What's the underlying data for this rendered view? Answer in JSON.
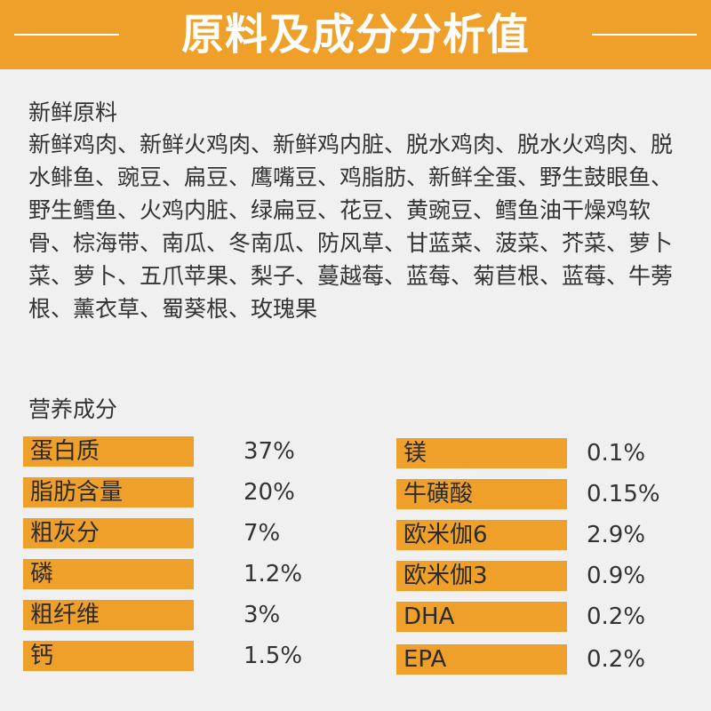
{
  "header": {
    "title": "原料及成分分析值"
  },
  "ingredients": {
    "label": "新鲜原料",
    "text": "新鲜鸡肉、新鲜火鸡肉、新鲜鸡内脏、脱水鸡肉、脱水火鸡肉、脱水鲱鱼、豌豆、扁豆、鹰嘴豆、鸡脂肪、新鲜全蛋、野生鼓眼鱼、野生鳕鱼、火鸡内脏、绿扁豆、花豆、黄豌豆、鳕鱼油干燥鸡软骨、棕海带、南瓜、冬南瓜、防风草、甘蓝菜、菠菜、芥菜、萝卜菜、萝卜、五爪苹果、梨子、蔓越莓、蓝莓、菊苣根、蓝莓、牛蒡根、薰衣草、蜀葵根、玫瑰果"
  },
  "nutrition": {
    "label": "营养成分",
    "left": [
      {
        "name": "蛋白质",
        "value": "37%"
      },
      {
        "name": "脂肪含量",
        "value": "20%"
      },
      {
        "name": "粗灰分",
        "value": "7%"
      },
      {
        "name": "磷",
        "value": "1.2%"
      },
      {
        "name": "粗纤维",
        "value": "3%"
      },
      {
        "name": "钙",
        "value": "1.5%"
      }
    ],
    "right": [
      {
        "name": "镁",
        "value": "0.1%"
      },
      {
        "name": "牛磺酸",
        "value": "0.15%"
      },
      {
        "name": "欧米伽6",
        "value": "2.9%"
      },
      {
        "name": "欧米伽3",
        "value": "0.9%"
      },
      {
        "name": "DHA",
        "value": "0.2%"
      },
      {
        "name": "EPA",
        "value": "0.2%"
      }
    ]
  },
  "colors": {
    "accent": "#efa02a",
    "background": "#f0f0f0",
    "text": "#333333"
  }
}
